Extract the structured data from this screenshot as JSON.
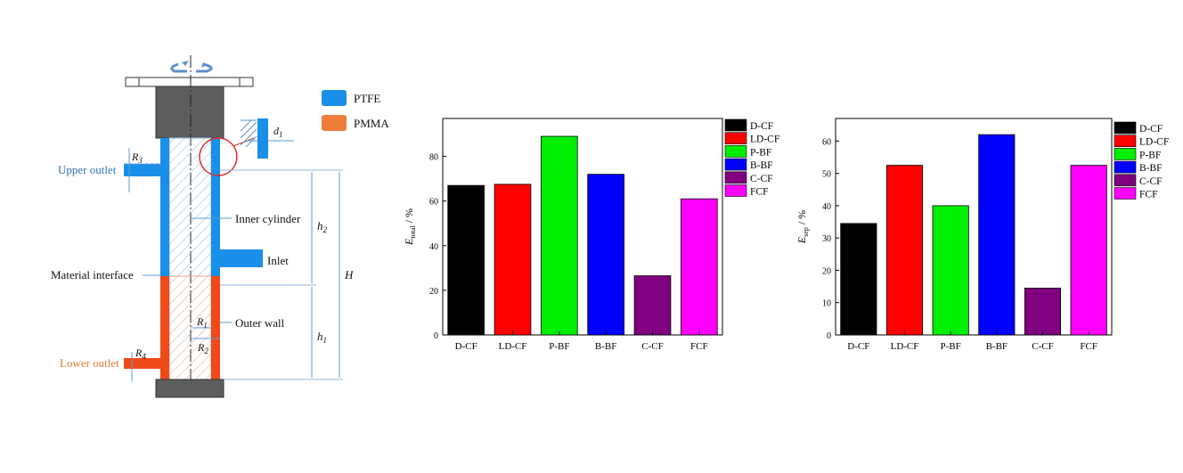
{
  "diagram": {
    "legend": [
      {
        "label": "PTFE",
        "color": "#1a8fe8"
      },
      {
        "label": "PMMA",
        "color": "#ef7d3a"
      }
    ],
    "labels": {
      "upper_outlet": "Upper outlet",
      "lower_outlet": "Lower outlet",
      "material_interface": "Material interface",
      "inner_cylinder": "Inner cylinder",
      "inlet": "Inlet",
      "outer_wall": "Outer wall",
      "R3": "R",
      "R3_sub": "3",
      "R4": "R",
      "R4_sub": "4",
      "R1": "R",
      "R1_sub": "1",
      "R2": "R",
      "R2_sub": "2",
      "d1": "d",
      "d1_sub": "1",
      "h2": "h",
      "h2_sub": "2",
      "h1": "h",
      "h1_sub": "1",
      "H": "H"
    },
    "colors": {
      "ptfe": "#1a8fe8",
      "pmma": "#ef4a1a",
      "cap": "#5d5d5d",
      "label_blue": "#2e75b6",
      "label_orange": "#e07b39",
      "dim_line": "#5b9bd5",
      "highlight_circle": "#d93030"
    }
  },
  "chart_data": [
    {
      "type": "bar",
      "categories": [
        "D-CF",
        "LD-CF",
        "P-BF",
        "B-BF",
        "C-CF",
        "FCF"
      ],
      "values": [
        67,
        67.5,
        89,
        72,
        26.5,
        61
      ],
      "colors": [
        "#000000",
        "#ff0000",
        "#00ee00",
        "#0000ff",
        "#800080",
        "#ff00ff"
      ],
      "ylabel": "E",
      "ylabel_sub": "total",
      "ylabel_unit": " / %",
      "ylim": [
        0,
        97
      ],
      "yticks": [
        0,
        20,
        40,
        60,
        80
      ],
      "legend": [
        "D-CF",
        "LD-CF",
        "P-BF",
        "B-BF",
        "C-CF",
        "FCF"
      ],
      "legend_position": "top-right outside"
    },
    {
      "type": "bar",
      "categories": [
        "D-CF",
        "LD-CF",
        "P-BF",
        "B-BF",
        "C-CF",
        "FCF"
      ],
      "values": [
        34.5,
        52.5,
        40,
        62,
        14.5,
        52.5
      ],
      "colors": [
        "#000000",
        "#ff0000",
        "#00ee00",
        "#0000ff",
        "#800080",
        "#ff00ff"
      ],
      "ylabel": "E",
      "ylabel_sub": "sep",
      "ylabel_unit": " / %",
      "ylim": [
        0,
        67
      ],
      "yticks": [
        0,
        10,
        20,
        30,
        40,
        50,
        60
      ],
      "legend": [
        "D-CF",
        "LD-CF",
        "P-BF",
        "B-BF",
        "C-CF",
        "FCF"
      ],
      "legend_position": "top-right outside"
    }
  ]
}
